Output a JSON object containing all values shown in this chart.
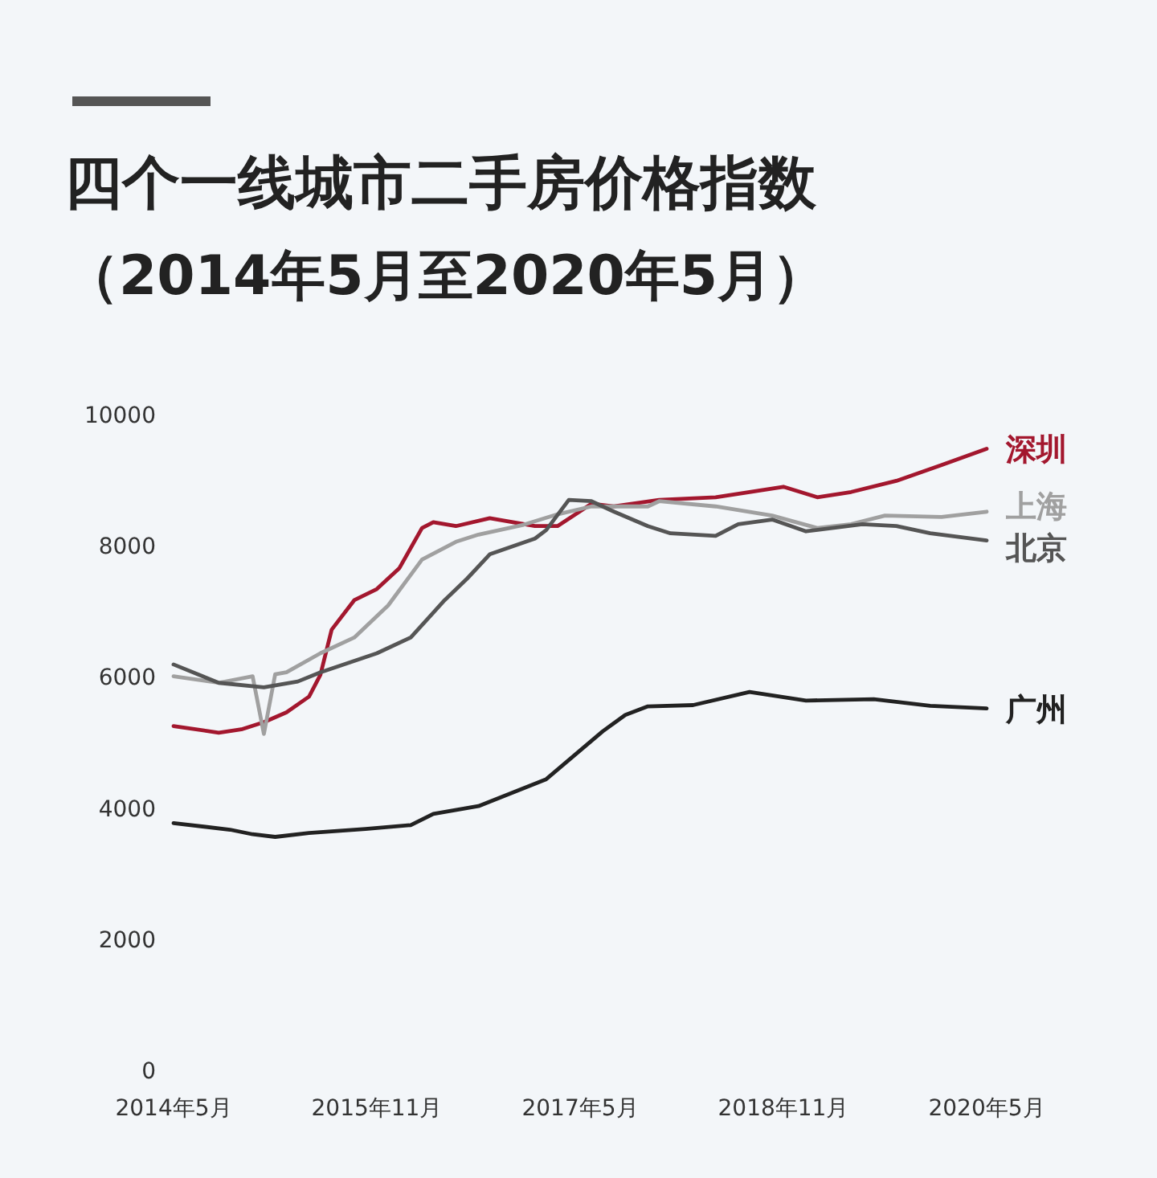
{
  "chart_data": {
    "type": "line",
    "title": "四个一线城市二手房价格指数",
    "subtitle": "（2014年5月至2020年5月）",
    "xlim": [
      "2014-05",
      "2020-05"
    ],
    "xticks": [
      {
        "value": "2014-05",
        "label": "2014年5月"
      },
      {
        "value": "2015-11",
        "label": "2015年11月"
      },
      {
        "value": "2017-05",
        "label": "2017年5月"
      },
      {
        "value": "2018-11",
        "label": "2018年11月"
      },
      {
        "value": "2020-05",
        "label": "2020年5月"
      }
    ],
    "ylim": [
      0,
      10000
    ],
    "yticks": [
      0,
      2000,
      4000,
      6000,
      8000,
      10000
    ],
    "grid": false,
    "series": [
      {
        "name": "深圳",
        "color": "#a3172e",
        "x": [
          "2014-05",
          "2014-09",
          "2014-11",
          "2015-01",
          "2015-03",
          "2015-05",
          "2015-06",
          "2015-07",
          "2015-09",
          "2015-11",
          "2016-01",
          "2016-03",
          "2016-04",
          "2016-06",
          "2016-09",
          "2017-01",
          "2017-03",
          "2017-06",
          "2017-08",
          "2017-12",
          "2018-05",
          "2018-11",
          "2019-02",
          "2019-05",
          "2019-09",
          "2020-01",
          "2020-05"
        ],
        "values": [
          5250,
          5150,
          5200,
          5310,
          5460,
          5700,
          6030,
          6720,
          7170,
          7340,
          7660,
          8270,
          8360,
          8300,
          8420,
          8300,
          8300,
          8640,
          8600,
          8700,
          8740,
          8900,
          8740,
          8820,
          8990,
          9230,
          9480
        ]
      },
      {
        "name": "上海",
        "color": "#a0a0a0",
        "x": [
          "2014-05",
          "2014-09",
          "2014-12",
          "2015-01",
          "2015-02",
          "2015-03",
          "2015-06",
          "2015-09",
          "2015-12",
          "2016-03",
          "2016-06",
          "2016-08",
          "2016-12",
          "2017-03",
          "2017-06",
          "2017-11",
          "2017-12",
          "2018-05",
          "2018-10",
          "2019-02",
          "2019-05",
          "2019-08",
          "2020-01",
          "2020-05"
        ],
        "values": [
          6010,
          5910,
          6010,
          5130,
          6040,
          6070,
          6360,
          6600,
          7090,
          7790,
          8060,
          8170,
          8320,
          8480,
          8600,
          8600,
          8680,
          8600,
          8460,
          8270,
          8330,
          8460,
          8440,
          8520
        ]
      },
      {
        "name": "北京",
        "color": "#555555",
        "x": [
          "2014-05",
          "2014-09",
          "2015-01",
          "2015-04",
          "2015-06",
          "2015-11",
          "2016-02",
          "2016-05",
          "2016-07",
          "2016-09",
          "2017-01",
          "2017-02",
          "2017-04",
          "2017-06",
          "2017-08",
          "2017-11",
          "2018-01",
          "2018-05",
          "2018-07",
          "2018-10",
          "2019-01",
          "2019-06",
          "2019-09",
          "2019-12",
          "2020-05"
        ],
        "values": [
          6190,
          5910,
          5840,
          5930,
          6070,
          6360,
          6600,
          7170,
          7500,
          7870,
          8110,
          8240,
          8700,
          8680,
          8520,
          8300,
          8190,
          8150,
          8330,
          8400,
          8220,
          8330,
          8300,
          8190,
          8080
        ]
      },
      {
        "name": "广州",
        "color": "#222222",
        "x": [
          "2014-05",
          "2014-10",
          "2014-12",
          "2015-02",
          "2015-05",
          "2015-10",
          "2016-02",
          "2016-04",
          "2016-08",
          "2017-02",
          "2017-07",
          "2017-09",
          "2017-11",
          "2018-03",
          "2018-08",
          "2019-01",
          "2019-07",
          "2019-12",
          "2020-05"
        ],
        "values": [
          3770,
          3670,
          3600,
          3560,
          3620,
          3680,
          3740,
          3910,
          4030,
          4440,
          5170,
          5420,
          5550,
          5570,
          5770,
          5640,
          5660,
          5560,
          5520
        ]
      }
    ]
  }
}
